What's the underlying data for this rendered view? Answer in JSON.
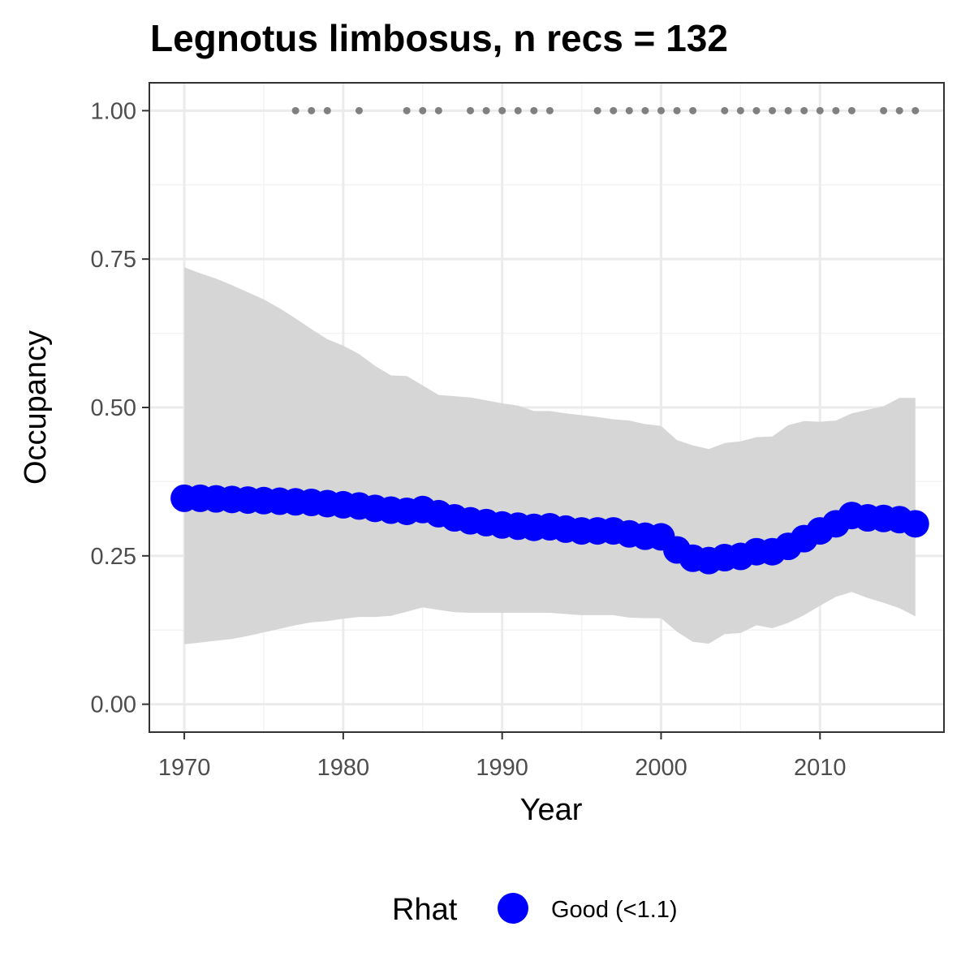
{
  "chart_data": {
    "type": "line",
    "title": "Legnotus limbosus, n recs = 132",
    "xlabel": "Year",
    "ylabel": "Occupancy",
    "xlim": [
      1967.8,
      2017.8
    ],
    "ylim": [
      -0.047,
      1.047
    ],
    "x_ticks": [
      1970,
      1980,
      1990,
      2000,
      2010
    ],
    "y_ticks": [
      0.0,
      0.25,
      0.5,
      0.75,
      1.0
    ],
    "x_tick_labels": [
      "1970",
      "1980",
      "1990",
      "2000",
      "2010"
    ],
    "y_tick_labels": [
      "0.00",
      "0.25",
      "0.50",
      "0.75",
      "1.00"
    ],
    "grid": true,
    "legend": {
      "title": "Rhat",
      "position": "bottom",
      "entries": [
        {
          "label": "Good (<1.1)",
          "color": "#0000ff"
        }
      ]
    },
    "series": [
      {
        "name": "Good (<1.1)",
        "color": "#0000ff",
        "x": [
          1970,
          1971,
          1972,
          1973,
          1974,
          1975,
          1976,
          1977,
          1978,
          1979,
          1980,
          1981,
          1982,
          1983,
          1984,
          1985,
          1986,
          1987,
          1988,
          1989,
          1990,
          1991,
          1992,
          1993,
          1994,
          1995,
          1996,
          1997,
          1998,
          1999,
          2000,
          2001,
          2002,
          2003,
          2004,
          2005,
          2006,
          2007,
          2008,
          2009,
          2010,
          2011,
          2012,
          2013,
          2014,
          2015,
          2016
        ],
        "y": [
          0.347,
          0.347,
          0.346,
          0.345,
          0.344,
          0.343,
          0.342,
          0.341,
          0.34,
          0.338,
          0.336,
          0.334,
          0.33,
          0.327,
          0.325,
          0.328,
          0.321,
          0.314,
          0.309,
          0.306,
          0.302,
          0.3,
          0.298,
          0.299,
          0.295,
          0.292,
          0.292,
          0.292,
          0.287,
          0.283,
          0.282,
          0.26,
          0.246,
          0.242,
          0.247,
          0.249,
          0.257,
          0.257,
          0.266,
          0.279,
          0.292,
          0.304,
          0.318,
          0.314,
          0.313,
          0.311,
          0.304
        ],
        "lower": [
          0.101,
          0.104,
          0.107,
          0.11,
          0.115,
          0.121,
          0.127,
          0.133,
          0.138,
          0.14,
          0.144,
          0.147,
          0.147,
          0.149,
          0.156,
          0.163,
          0.159,
          0.155,
          0.154,
          0.154,
          0.154,
          0.154,
          0.154,
          0.154,
          0.152,
          0.15,
          0.15,
          0.15,
          0.146,
          0.145,
          0.145,
          0.122,
          0.105,
          0.102,
          0.118,
          0.12,
          0.133,
          0.128,
          0.137,
          0.15,
          0.166,
          0.181,
          0.189,
          0.179,
          0.171,
          0.162,
          0.148
        ],
        "upper": [
          0.736,
          0.726,
          0.717,
          0.706,
          0.694,
          0.682,
          0.667,
          0.65,
          0.632,
          0.615,
          0.604,
          0.59,
          0.57,
          0.554,
          0.553,
          0.537,
          0.521,
          0.519,
          0.517,
          0.512,
          0.507,
          0.503,
          0.494,
          0.494,
          0.49,
          0.487,
          0.484,
          0.48,
          0.478,
          0.472,
          0.469,
          0.445,
          0.436,
          0.43,
          0.44,
          0.443,
          0.45,
          0.451,
          0.47,
          0.477,
          0.476,
          0.478,
          0.49,
          0.496,
          0.502,
          0.516,
          0.516
        ]
      }
    ],
    "records_y": 1.0,
    "record_years": [
      1977,
      1978,
      1979,
      1981,
      1984,
      1985,
      1986,
      1988,
      1989,
      1990,
      1991,
      1992,
      1993,
      1996,
      1997,
      1998,
      1999,
      2000,
      2001,
      2002,
      2004,
      2005,
      2006,
      2007,
      2008,
      2009,
      2010,
      2011,
      2012,
      2014,
      2015,
      2016
    ]
  },
  "colors": {
    "line": "#0000ff",
    "ribbon": "#d6d6d6",
    "records": "#808080",
    "grid_major": "#ebebeb",
    "grid_minor": "#f3f3f3",
    "border": "#333333"
  }
}
